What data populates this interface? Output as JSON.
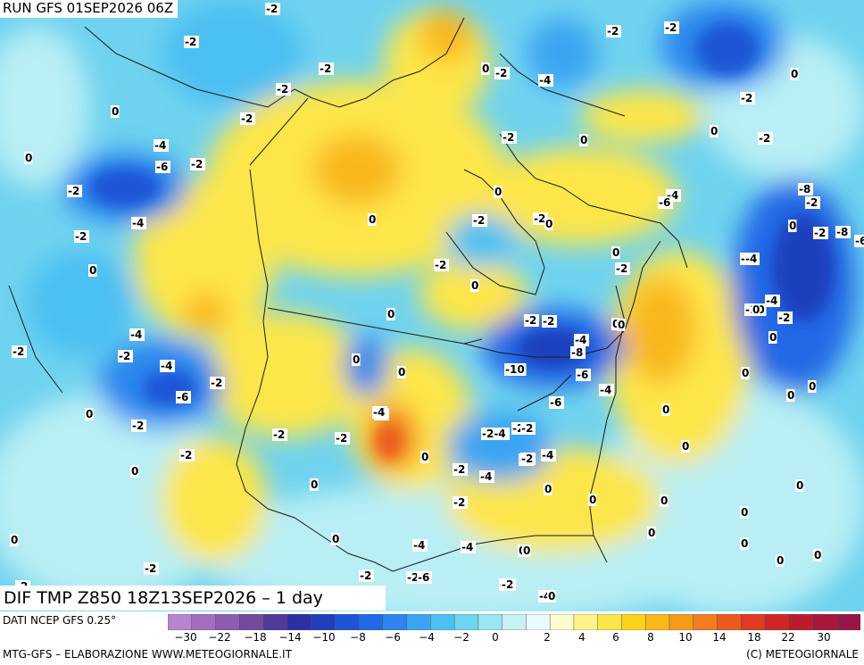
{
  "header": {
    "run_label": "RUN GFS 01SEP2026 06Z"
  },
  "footer": {
    "title": "DIF TMP Z850 18Z13SEP2026 – 1 day",
    "source": "DATI NCEP GFS 0.25°",
    "credit_left": "MTG-GFS – ELABORAZIONE WWW.METEOGIORNALE.IT",
    "credit_right": "(C) METEOGIORNALE"
  },
  "scale": {
    "tick_labels": [
      "−30",
      "−22",
      "−18",
      "−14",
      "−10",
      "−8",
      "−6",
      "−4",
      "−2",
      "0",
      "2",
      "4",
      "6",
      "8",
      "10",
      "14",
      "18",
      "22",
      "30"
    ],
    "colors": [
      "#b784cf",
      "#a46ebf",
      "#8e5cb0",
      "#734a9e",
      "#4f3a9a",
      "#2d2fa4",
      "#1f3fbd",
      "#1e55d6",
      "#2269e6",
      "#2c86ee",
      "#3aa4f2",
      "#4cc0f2",
      "#6dd6f2",
      "#9ae6f3",
      "#c6f2f6",
      "#e8fbfa",
      "#fdfbcf",
      "#fef28a",
      "#fde64a",
      "#fcd21b",
      "#f9b71a",
      "#f59b1a",
      "#f17d1c",
      "#ea5a1e",
      "#df3a22",
      "#cf2525",
      "#bb1c2d",
      "#a8173a",
      "#961745"
    ]
  },
  "map_labels": [
    {
      "text": "-2"
    },
    {
      "text": "-2"
    },
    {
      "text": "-2"
    },
    {
      "text": "-2"
    },
    {
      "text": "-2"
    },
    {
      "text": "-4"
    },
    {
      "text": "-6"
    },
    {
      "text": "-2"
    },
    {
      "text": "-4"
    },
    {
      "text": "-2"
    },
    {
      "text": "0"
    },
    {
      "text": "0"
    },
    {
      "text": "0"
    },
    {
      "text": "-2"
    },
    {
      "text": "-4"
    },
    {
      "text": "-2"
    },
    {
      "text": "-4"
    },
    {
      "text": "-6"
    },
    {
      "text": "-2"
    },
    {
      "text": "-2"
    },
    {
      "text": "0"
    },
    {
      "text": "-2"
    },
    {
      "text": "0"
    },
    {
      "text": "-2"
    },
    {
      "text": "0"
    },
    {
      "text": "0"
    },
    {
      "text": "-2"
    },
    {
      "text": "0"
    },
    {
      "text": "-2"
    },
    {
      "text": "-4"
    },
    {
      "text": "0"
    },
    {
      "text": "-2"
    },
    {
      "text": "-2"
    },
    {
      "text": "-2-4"
    },
    {
      "text": "-2"
    },
    {
      "text": "-4"
    },
    {
      "text": "-4"
    },
    {
      "text": "-2"
    },
    {
      "text": "0"
    },
    {
      "text": "0"
    },
    {
      "text": "-2"
    },
    {
      "text": "0"
    },
    {
      "text": "0"
    },
    {
      "text": "-2"
    },
    {
      "text": "0"
    },
    {
      "text": "0"
    },
    {
      "text": "-2"
    },
    {
      "text": "-2"
    },
    {
      "text": "-2"
    },
    {
      "text": "0"
    },
    {
      "text": "-2"
    },
    {
      "text": "0"
    },
    {
      "text": "0"
    },
    {
      "text": "-2"
    },
    {
      "text": "-2"
    },
    {
      "text": "-4"
    },
    {
      "text": "-8"
    },
    {
      "text": "-10"
    },
    {
      "text": "-6"
    },
    {
      "text": "-6"
    },
    {
      "text": "-4"
    },
    {
      "text": "-2"
    },
    {
      "text": "-4"
    },
    {
      "text": "-2"
    },
    {
      "text": "-4"
    },
    {
      "text": "-2"
    },
    {
      "text": "0"
    },
    {
      "text": "0"
    },
    {
      "text": "0"
    },
    {
      "text": "0"
    },
    {
      "text": "0"
    },
    {
      "text": "0"
    },
    {
      "text": "0"
    },
    {
      "text": "0"
    },
    {
      "text": "-4"
    },
    {
      "text": "-4"
    },
    {
      "text": "-2"
    },
    {
      "text": "-6"
    },
    {
      "text": "-2"
    },
    {
      "text": "-4"
    },
    {
      "text": "-2"
    },
    {
      "text": "0"
    },
    {
      "text": "-2"
    },
    {
      "text": "-2"
    },
    {
      "text": "0"
    },
    {
      "text": "-2"
    },
    {
      "text": "-2"
    },
    {
      "text": "-2"
    },
    {
      "text": "0"
    },
    {
      "text": "0"
    },
    {
      "text": "-2"
    },
    {
      "text": "-4"
    },
    {
      "text": "-6"
    },
    {
      "text": "-2"
    },
    {
      "text": "-10"
    },
    {
      "text": "-8"
    },
    {
      "text": "-2"
    },
    {
      "text": "0"
    },
    {
      "text": "-2"
    },
    {
      "text": "-8"
    },
    {
      "text": "-6"
    },
    {
      "text": "-4"
    },
    {
      "text": "0"
    },
    {
      "text": "-4"
    },
    {
      "text": "-2"
    },
    {
      "text": "0"
    },
    {
      "text": "0"
    },
    {
      "text": "0"
    },
    {
      "text": "0"
    },
    {
      "text": "0"
    },
    {
      "text": "0"
    },
    {
      "text": "0"
    },
    {
      "text": "0"
    },
    {
      "text": "0"
    },
    {
      "text": "0"
    },
    {
      "text": "0"
    },
    {
      "text": "0"
    }
  ]
}
